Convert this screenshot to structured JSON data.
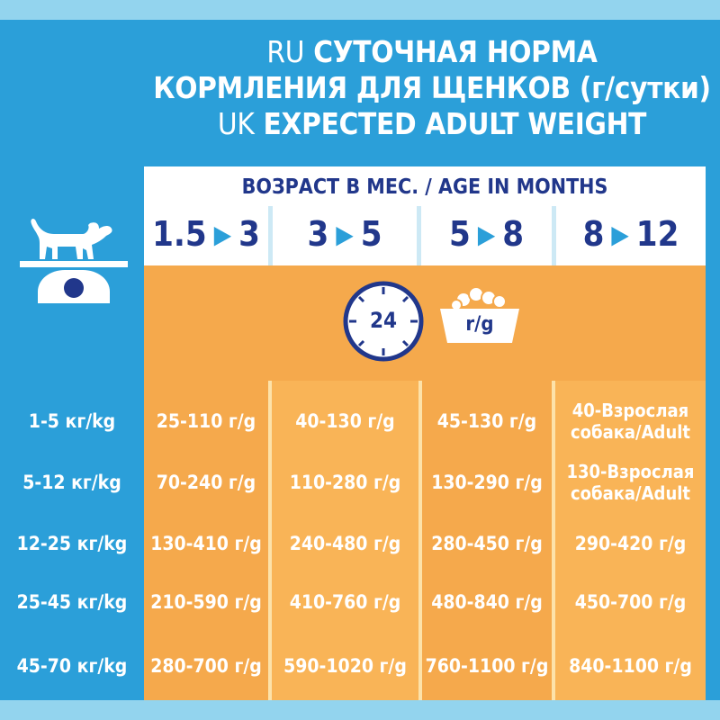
{
  "title": {
    "line1_lang": "RU",
    "line1_text": "СУТОЧНАЯ НОРМА",
    "line2_text": "КОРМЛЕНИЯ ДЛЯ ЩЕНКОВ (г/сутки)",
    "line3_lang": "UK",
    "line3_text": "EXPECTED ADULT WEIGHT"
  },
  "age": {
    "header": "ВОЗРАСТ В МЕС. / AGE IN MONTHS",
    "columns": [
      {
        "from": "1.5",
        "to": "3"
      },
      {
        "from": "3",
        "to": "5"
      },
      {
        "from": "5",
        "to": "8"
      },
      {
        "from": "8",
        "to": "12"
      }
    ]
  },
  "icons": {
    "dog": "dog-on-scale-icon",
    "clock": "clock-24h-icon",
    "bowl": "food-bowl-icon"
  },
  "feed": {
    "clock_label": "24",
    "bowl_label": "r/g"
  },
  "colors": {
    "blue": "#2b9fd9",
    "light_blue": "#93d4ee",
    "navy": "#21378b",
    "orange": "#f5a94c",
    "light_orange": "#fbb95e"
  },
  "rows": [
    {
      "weight": "1-5 кг/kg",
      "cells": [
        "25-110 г/g",
        "40-130 г/g",
        "45-130 г/g",
        "40-Взрослая\nсобака/Adult"
      ]
    },
    {
      "weight": "5-12 кг/kg",
      "cells": [
        "70-240 г/g",
        "110-280 г/g",
        "130-290 г/g",
        "130-Взрослая\nсобака/Adult"
      ]
    },
    {
      "weight": "12-25 кг/kg",
      "cells": [
        "130-410 г/g",
        "240-480 г/g",
        "280-450 г/g",
        "290-420 г/g"
      ]
    },
    {
      "weight": "25-45 кг/kg",
      "cells": [
        "210-590 г/g",
        "410-760 г/g",
        "480-840 г/g",
        "450-700 г/g"
      ]
    },
    {
      "weight": "45-70 кг/kg",
      "cells": [
        "280-700 г/g",
        "590-1020 г/g",
        "760-1100 г/g",
        "840-1100 г/g"
      ]
    }
  ]
}
